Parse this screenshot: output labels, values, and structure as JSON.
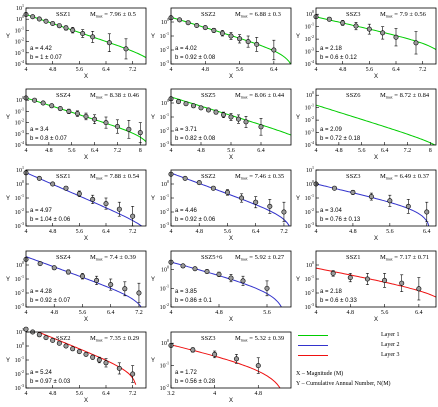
{
  "legend": {
    "entries": [
      {
        "label": "Layer 1",
        "color": "#00cc00"
      },
      {
        "label": "Layer 2",
        "color": "#3333cc"
      },
      {
        "label": "Layer 3",
        "color": "#ee1111"
      }
    ],
    "x_note": "X – Magnitude (M)",
    "y_note": "Y – Cumulative Annual Number, N(M)"
  },
  "chart_data": [
    {
      "type": "scatter",
      "title": "SSZ1",
      "mmax": "7.96 ± 0.5",
      "a_text": "a = 4.42",
      "b_text": "b = 1 ± 0.07",
      "layer": 1,
      "xlabel": "X",
      "ylabel": "Y",
      "xlim": [
        4,
        7.6
      ],
      "ylim": [
        -4,
        1
      ],
      "xticks": [
        "4",
        "4.8",
        "5.6",
        "6.4",
        "7.2"
      ],
      "yticks": [
        1,
        0,
        -1,
        -2,
        -3,
        -4
      ],
      "points": [
        [
          4.0,
          0.42,
          0
        ],
        [
          4.2,
          0.22,
          0
        ],
        [
          4.4,
          0.02,
          0.05
        ],
        [
          4.6,
          -0.18,
          0.07
        ],
        [
          4.8,
          -0.38,
          0.1
        ],
        [
          5.0,
          -0.58,
          0.15
        ],
        [
          5.2,
          -0.78,
          0.2
        ],
        [
          5.4,
          -0.98,
          0.25
        ],
        [
          5.7,
          -1.28,
          0.35
        ],
        [
          6.0,
          -1.58,
          0.5
        ],
        [
          6.5,
          -2.1,
          0.8
        ],
        [
          7.0,
          -2.65,
          0.9
        ]
      ],
      "curve": {
        "a": 4.42,
        "b": 1.0,
        "x0": 4.0,
        "x1": 7.6
      }
    },
    {
      "type": "scatter",
      "title": "SSZ2",
      "mmax": "6.88 ± 0.3",
      "a_text": "a = 4.02",
      "b_text": "b = 0.92 ± 0.08",
      "layer": 1,
      "xlabel": "X",
      "ylabel": "Y",
      "xlim": [
        4,
        6.8
      ],
      "ylim": [
        -3,
        1
      ],
      "xticks": [
        "4",
        "4.8",
        "5.6",
        "6.4"
      ],
      "yticks": [
        0,
        -1,
        -2,
        -3
      ],
      "points": [
        [
          4.0,
          0.3,
          0
        ],
        [
          4.2,
          0.15,
          0
        ],
        [
          4.4,
          -0.05,
          0.05
        ],
        [
          4.6,
          -0.25,
          0.07
        ],
        [
          4.8,
          -0.4,
          0.1
        ],
        [
          5.0,
          -0.6,
          0.15
        ],
        [
          5.2,
          -0.8,
          0.2
        ],
        [
          5.4,
          -1.0,
          0.25
        ],
        [
          5.6,
          -1.2,
          0.3
        ],
        [
          5.8,
          -1.4,
          0.4
        ],
        [
          6.0,
          -1.6,
          0.5
        ],
        [
          6.4,
          -2.0,
          0.7
        ]
      ],
      "curve": {
        "a": 4.02,
        "b": 0.92,
        "x0": 4.0,
        "x1": 6.85
      }
    },
    {
      "type": "scatter",
      "title": "SSZ3",
      "mmax": "7.9 ± 0.56",
      "a_text": "a = 2.18",
      "b_text": "b = 0.6 ± 0.12",
      "layer": 1,
      "xlabel": "X",
      "ylabel": "Y",
      "xlim": [
        4,
        7.6
      ],
      "ylim": [
        -4,
        0.5
      ],
      "xticks": [
        "4",
        "4.8",
        "5.6",
        "6.4",
        "7.2"
      ],
      "yticks": [
        0,
        -1,
        -2,
        -3,
        -4
      ],
      "points": [
        [
          4.0,
          -0.2,
          0.1
        ],
        [
          4.4,
          -0.4,
          0.15
        ],
        [
          4.8,
          -0.7,
          0.2
        ],
        [
          5.2,
          -0.95,
          0.3
        ],
        [
          5.6,
          -1.2,
          0.4
        ],
        [
          6.0,
          -1.5,
          0.5
        ],
        [
          6.4,
          -1.85,
          0.7
        ],
        [
          7.0,
          -2.3,
          0.9
        ]
      ],
      "curve": {
        "a": 2.18,
        "b": 0.6,
        "x0": 4.0,
        "x1": 7.9
      }
    },
    {
      "type": "scatter",
      "title": "SSZ4",
      "mmax": "8.38 ± 0.46",
      "a_text": "a = 3.4",
      "b_text": "b = 0.8 ± 0.07",
      "layer": 1,
      "xlabel": "X",
      "ylabel": "Y",
      "xlim": [
        4,
        8.2
      ],
      "ylim": [
        -4,
        1
      ],
      "xticks": [
        "4",
        "4.8",
        "5.6",
        "6.4",
        "7.2",
        "8"
      ],
      "yticks": [
        0,
        -1,
        -2,
        -3,
        -4
      ],
      "points": [
        [
          4.0,
          0.2,
          0
        ],
        [
          4.3,
          0.0,
          0.05
        ],
        [
          4.6,
          -0.25,
          0.08
        ],
        [
          4.9,
          -0.5,
          0.12
        ],
        [
          5.2,
          -0.75,
          0.15
        ],
        [
          5.5,
          -1.0,
          0.2
        ],
        [
          5.8,
          -1.2,
          0.25
        ],
        [
          6.1,
          -1.45,
          0.3
        ],
        [
          6.4,
          -1.7,
          0.4
        ],
        [
          6.8,
          -2.0,
          0.5
        ],
        [
          7.2,
          -2.35,
          0.6
        ],
        [
          7.6,
          -2.6,
          0.8
        ],
        [
          8.0,
          -2.9,
          0.9
        ]
      ],
      "curve": {
        "a": 3.4,
        "b": 0.8,
        "x0": 4.0,
        "x1": 8.2
      }
    },
    {
      "type": "scatter",
      "title": "SSZ5",
      "mmax": "8.06 ± 0.44",
      "a_text": "a = 3.71",
      "b_text": "b = 0.82 ± 0.08",
      "layer": 1,
      "xlabel": "X",
      "ylabel": "Y",
      "xlim": [
        4,
        7.2
      ],
      "ylim": [
        -3,
        1
      ],
      "xticks": [
        "4",
        "4.8",
        "5.6",
        "6.4"
      ],
      "yticks": [
        0,
        -1,
        -2,
        -3
      ],
      "points": [
        [
          4.0,
          0.3,
          0
        ],
        [
          4.2,
          0.1,
          0.05
        ],
        [
          4.4,
          -0.05,
          0.05
        ],
        [
          4.6,
          -0.2,
          0.07
        ],
        [
          4.8,
          -0.35,
          0.1
        ],
        [
          5.0,
          -0.5,
          0.12
        ],
        [
          5.2,
          -0.65,
          0.15
        ],
        [
          5.4,
          -0.85,
          0.2
        ],
        [
          5.6,
          -1.0,
          0.25
        ],
        [
          5.8,
          -1.15,
          0.3
        ],
        [
          6.0,
          -1.35,
          0.4
        ],
        [
          6.4,
          -1.7,
          0.6
        ]
      ],
      "curve": {
        "a": 3.71,
        "b": 0.82,
        "x0": 4.0,
        "x1": 7.2
      }
    },
    {
      "type": "line",
      "title": "SSZ6",
      "mmax": "8.72 ± 0.84",
      "a_text": "a = 2.09",
      "b_text": "b = 0.72 ± 0.18",
      "layer": 1,
      "xlabel": "X",
      "ylabel": "Y",
      "xlim": [
        4,
        8.2
      ],
      "ylim": [
        -4,
        0.5
      ],
      "xticks": [
        "4",
        "4.8",
        "5.6",
        "6.4",
        "7.2",
        "8"
      ],
      "yticks": [
        0,
        -1,
        -2,
        -3,
        -4
      ],
      "points": [],
      "curve": {
        "a": 2.09,
        "b": 0.72,
        "x0": 4.0,
        "x1": 8.2
      }
    },
    {
      "type": "scatter",
      "title": "SSZ1",
      "mmax": "7.88 ± 0.54",
      "a_text": "a = 4.97",
      "b_text": "b = 1.04 ± 0.06",
      "layer": 2,
      "xlabel": "X",
      "ylabel": "Y",
      "xlim": [
        4,
        7.6
      ],
      "ylim": [
        -3,
        1
      ],
      "xticks": [
        "4",
        "4.8",
        "5.6",
        "6.4",
        "7.2"
      ],
      "yticks": [
        1,
        0,
        -1,
        -2,
        -3
      ],
      "points": [
        [
          4.0,
          0.8,
          0
        ],
        [
          4.4,
          0.4,
          0.05
        ],
        [
          4.8,
          0.0,
          0.08
        ],
        [
          5.2,
          -0.3,
          0.12
        ],
        [
          5.6,
          -0.7,
          0.2
        ],
        [
          6.0,
          -1.1,
          0.3
        ],
        [
          6.4,
          -1.4,
          0.4
        ],
        [
          6.8,
          -1.8,
          0.5
        ],
        [
          7.2,
          -2.3,
          0.7
        ]
      ],
      "curve": {
        "a": 4.97,
        "b": 1.04,
        "x0": 4.0,
        "x1": 7.6
      }
    },
    {
      "type": "scatter",
      "title": "SSZ2",
      "mmax": "7.46 ± 0.35",
      "a_text": "a = 4.46",
      "b_text": "b = 0.92 ± 0.06",
      "layer": 2,
      "xlabel": "X",
      "ylabel": "Y",
      "xlim": [
        4,
        7.4
      ],
      "ylim": [
        -3,
        1
      ],
      "xticks": [
        "4",
        "4.8",
        "5.6",
        "6.4",
        "7.2"
      ],
      "yticks": [
        0,
        -1,
        -2,
        -3
      ],
      "points": [
        [
          4.0,
          0.7,
          0
        ],
        [
          4.4,
          0.4,
          0.05
        ],
        [
          4.8,
          0.1,
          0.08
        ],
        [
          5.2,
          -0.3,
          0.12
        ],
        [
          5.6,
          -0.6,
          0.2
        ],
        [
          6.0,
          -1.0,
          0.3
        ],
        [
          6.4,
          -1.3,
          0.4
        ],
        [
          6.8,
          -1.6,
          0.5
        ],
        [
          7.2,
          -2.0,
          0.7
        ]
      ],
      "curve": {
        "a": 4.46,
        "b": 0.92,
        "x0": 4.0,
        "x1": 7.4
      }
    },
    {
      "type": "scatter",
      "title": "SSZ3",
      "mmax": "6.49 ± 0.37",
      "a_text": "a = 3.04",
      "b_text": "b = 0.76 ± 0.13",
      "layer": 2,
      "xlabel": "X",
      "ylabel": "Y",
      "xlim": [
        4,
        6.6
      ],
      "ylim": [
        -3,
        1
      ],
      "xticks": [
        "4",
        "4.8",
        "5.6",
        "6.4"
      ],
      "yticks": [
        1,
        0,
        -1,
        -2,
        -3
      ],
      "points": [
        [
          4.0,
          0.0,
          0.05
        ],
        [
          4.4,
          -0.3,
          0.1
        ],
        [
          4.8,
          -0.6,
          0.15
        ],
        [
          5.2,
          -0.9,
          0.25
        ],
        [
          5.6,
          -1.2,
          0.4
        ],
        [
          6.0,
          -1.6,
          0.5
        ],
        [
          6.4,
          -2.0,
          0.7
        ]
      ],
      "curve": {
        "a": 3.04,
        "b": 0.76,
        "x0": 4.0,
        "x1": 6.6
      }
    },
    {
      "type": "scatter",
      "title": "SSZ4",
      "mmax": "7.4 ± 0.39",
      "a_text": "a = 4.28",
      "b_text": "b = 0.92 ± 0.07",
      "layer": 2,
      "xlabel": "X",
      "ylabel": "Y",
      "xlim": [
        4,
        7.4
      ],
      "ylim": [
        -3,
        1
      ],
      "xticks": [
        "4",
        "4.8",
        "5.6",
        "6.4",
        "7.2"
      ],
      "yticks": [
        0,
        -1,
        -2,
        -3
      ],
      "points": [
        [
          4.0,
          0.4,
          0
        ],
        [
          4.4,
          0.1,
          0.05
        ],
        [
          4.8,
          -0.2,
          0.1
        ],
        [
          5.2,
          -0.5,
          0.15
        ],
        [
          5.6,
          -0.8,
          0.2
        ],
        [
          6.0,
          -1.1,
          0.3
        ],
        [
          6.4,
          -1.4,
          0.4
        ],
        [
          6.8,
          -1.7,
          0.5
        ],
        [
          7.2,
          -2.0,
          0.7
        ]
      ],
      "curve": {
        "a": 4.28,
        "b": 0.92,
        "x0": 4.0,
        "x1": 7.4
      }
    },
    {
      "type": "scatter",
      "title": "SSZ5+6",
      "mmax": "5.92 ± 0.27",
      "a_text": "a = 3.85",
      "b_text": "b = 0.86 ± 0.1",
      "layer": 2,
      "xlabel": "X",
      "ylabel": "Y",
      "xlim": [
        4,
        6.0
      ],
      "ylim": [
        -2,
        1
      ],
      "xticks": [
        "4",
        "4.8",
        "5.6"
      ],
      "yticks": [
        0,
        -1,
        -2
      ],
      "points": [
        [
          4.0,
          0.4,
          0
        ],
        [
          4.2,
          0.2,
          0.05
        ],
        [
          4.4,
          0.05,
          0.07
        ],
        [
          4.6,
          -0.1,
          0.1
        ],
        [
          4.8,
          -0.25,
          0.12
        ],
        [
          5.0,
          -0.45,
          0.2
        ],
        [
          5.2,
          -0.6,
          0.25
        ],
        [
          5.6,
          -1.0,
          0.4
        ]
      ],
      "curve": {
        "a": 3.85,
        "b": 0.86,
        "x0": 4.0,
        "x1": 5.92
      }
    },
    {
      "type": "scatter",
      "title": "SSZ1",
      "mmax": "7.17 ± 0.71",
      "a_text": "a = 2.18",
      "b_text": "b = 0.6 ± 0.33",
      "layer": 3,
      "xlabel": "X",
      "ylabel": "Y",
      "xlim": [
        4,
        6.8
      ],
      "ylim": [
        -3,
        1
      ],
      "xticks": [
        "4",
        "4.8",
        "5.6",
        "6.4"
      ],
      "yticks": [
        0,
        -1,
        -2,
        -3
      ],
      "points": [
        [
          4.4,
          -0.6,
          0.2
        ],
        [
          4.8,
          -0.9,
          0.3
        ],
        [
          5.2,
          -1.0,
          0.4
        ],
        [
          5.6,
          -1.1,
          0.5
        ],
        [
          6.0,
          -1.3,
          0.6
        ],
        [
          6.4,
          -1.7,
          0.8
        ]
      ],
      "curve": {
        "a": 2.18,
        "b": 0.6,
        "x0": 4.0,
        "x1": 6.8
      }
    },
    {
      "type": "scatter",
      "title": "SSZ2",
      "mmax": "7.35 ± 0.29",
      "a_text": "a = 5.24",
      "b_text": "b = 0.97 ± 0.03",
      "layer": 3,
      "xlabel": "X",
      "ylabel": "Y",
      "xlim": [
        4,
        7.6
      ],
      "ylim": [
        -3,
        1
      ],
      "xticks": [
        "4",
        "4.8",
        "5.6",
        "6.4",
        "7.2"
      ],
      "yticks": [
        1,
        0,
        -1,
        -2,
        -3
      ],
      "points": [
        [
          4.0,
          1.2,
          0
        ],
        [
          4.2,
          1.0,
          0
        ],
        [
          4.4,
          0.8,
          0.03
        ],
        [
          4.6,
          0.6,
          0.04
        ],
        [
          4.8,
          0.4,
          0.05
        ],
        [
          5.0,
          0.2,
          0.06
        ],
        [
          5.2,
          0.0,
          0.07
        ],
        [
          5.4,
          -0.2,
          0.08
        ],
        [
          5.6,
          -0.4,
          0.1
        ],
        [
          5.8,
          -0.6,
          0.12
        ],
        [
          6.0,
          -0.8,
          0.15
        ],
        [
          6.2,
          -1.0,
          0.2
        ],
        [
          6.4,
          -1.2,
          0.3
        ],
        [
          6.8,
          -1.6,
          0.4
        ],
        [
          7.2,
          -2.0,
          0.6
        ]
      ],
      "curve": {
        "a": 5.24,
        "b": 0.97,
        "x0": 4.0,
        "x1": 7.35
      }
    },
    {
      "type": "scatter",
      "title": "SSZ3",
      "mmax": "5.32 ± 0.39",
      "a_text": "a = 1.72",
      "b_text": "b = 0.56 ± 0.28",
      "layer": 3,
      "xlabel": "X",
      "ylabel": "Y",
      "xlim": [
        3.2,
        5.4
      ],
      "ylim": [
        -2,
        0.5
      ],
      "xticks": [
        "3.2",
        "4",
        "4.8"
      ],
      "yticks": [
        0,
        -1,
        -2
      ],
      "points": [
        [
          3.2,
          -0.1,
          0.05
        ],
        [
          3.6,
          -0.3,
          0.1
        ],
        [
          4.0,
          -0.5,
          0.15
        ],
        [
          4.4,
          -0.7,
          0.2
        ],
        [
          4.8,
          -1.0,
          0.35
        ]
      ],
      "curve": {
        "a": 1.72,
        "b": 0.56,
        "x0": 3.2,
        "x1": 5.32
      }
    }
  ]
}
